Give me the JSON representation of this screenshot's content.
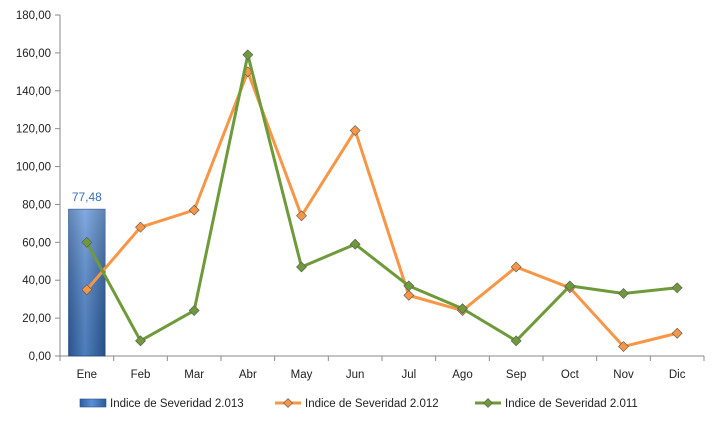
{
  "chart_data": {
    "type": "bar",
    "title": "",
    "xlabel": "",
    "ylabel": "",
    "categories": [
      "Ene",
      "Feb",
      "Mar",
      "Abr",
      "May",
      "Jun",
      "Jul",
      "Ago",
      "Sep",
      "Oct",
      "Nov",
      "Dic"
    ],
    "ylim": [
      0,
      180
    ],
    "yticks": [
      "0,00",
      "20,00",
      "40,00",
      "60,00",
      "80,00",
      "100,00",
      "120,00",
      "140,00",
      "160,00",
      "180,00"
    ],
    "grid": false,
    "legend_position": "bottom",
    "series": [
      {
        "name": "Indice de Severidad 2.013",
        "kind": "bar",
        "color": "#3a6fb8",
        "values": [
          77.48,
          null,
          null,
          null,
          null,
          null,
          null,
          null,
          null,
          null,
          null,
          null
        ],
        "data_labels": [
          "77,48"
        ]
      },
      {
        "name": "Indice de Severidad 2.012",
        "kind": "line",
        "color": "#f79646",
        "values": [
          35,
          68,
          77,
          150,
          74,
          119,
          32,
          24,
          47,
          36,
          5,
          12
        ]
      },
      {
        "name": "Indice de Severidad 2.011",
        "kind": "line",
        "color": "#6f9a3a",
        "values": [
          60,
          8,
          24,
          159,
          47,
          59,
          37,
          25,
          8,
          37,
          33,
          36
        ]
      }
    ]
  }
}
